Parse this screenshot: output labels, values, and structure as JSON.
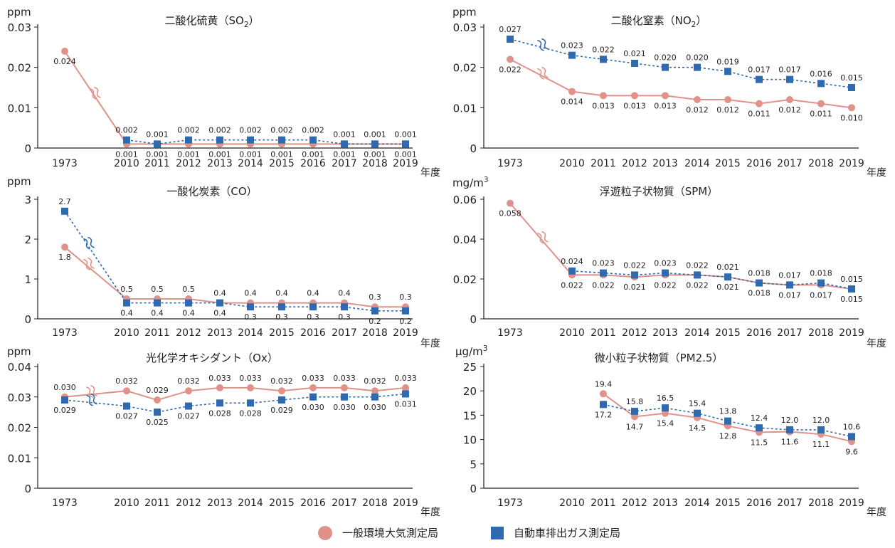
{
  "colors": {
    "general": "#e0928a",
    "roadside": "#2f6ab0",
    "axis": "#231f20"
  },
  "legend": {
    "general_label": "一般環境大気測定局",
    "roadside_label": "自動車排出ガス測定局",
    "general_icon": "circle-marker-icon",
    "roadside_icon": "square-marker-icon"
  },
  "chart_data": [
    {
      "type": "line",
      "title": "二酸化硫黄（SO2）",
      "ylabel": "ppm",
      "xlabel": "年度",
      "ylim": [
        0,
        0.03
      ],
      "yticks": [
        "0",
        "0.01",
        "0.02",
        "0.03"
      ],
      "categories": [
        "1973",
        "2010",
        "2011",
        "2012",
        "2013",
        "2014",
        "2015",
        "2016",
        "2017",
        "2018",
        "2019"
      ],
      "axis_break": true,
      "series": [
        {
          "name": "一般環境大気測定局",
          "values": [
            0.024,
            0.001,
            0.001,
            0.001,
            0.001,
            0.001,
            0.001,
            0.001,
            0.001,
            0.001,
            0.001
          ],
          "labels": [
            "0.024",
            "0.001",
            "0.001",
            "0.001",
            "0.001",
            "0.001",
            "0.001",
            "0.001",
            "0.001",
            "0.001",
            "0.001"
          ]
        },
        {
          "name": "自動車排出ガス測定局",
          "values": [
            null,
            0.002,
            0.001,
            0.002,
            0.002,
            0.002,
            0.002,
            0.002,
            0.001,
            0.001,
            0.001
          ],
          "labels": [
            null,
            "0.002",
            "0.001",
            "0.002",
            "0.002",
            "0.002",
            "0.002",
            "0.002",
            "0.001",
            "0.001",
            "0.001"
          ]
        }
      ]
    },
    {
      "type": "line",
      "title": "二酸化窒素（NO2）",
      "ylabel": "ppm",
      "xlabel": "年度",
      "ylim": [
        0,
        0.03
      ],
      "yticks": [
        "0",
        "0.01",
        "0.02",
        "0.03"
      ],
      "categories": [
        "1973",
        "2010",
        "2011",
        "2012",
        "2013",
        "2014",
        "2015",
        "2016",
        "2017",
        "2018",
        "2019"
      ],
      "axis_break": true,
      "series": [
        {
          "name": "一般環境大気測定局",
          "values": [
            0.022,
            0.014,
            0.013,
            0.013,
            0.013,
            0.012,
            0.012,
            0.011,
            0.012,
            0.011,
            0.01
          ],
          "labels": [
            "0.022",
            "0.014",
            "0.013",
            "0.013",
            "0.013",
            "0.012",
            "0.012",
            "0.011",
            "0.012",
            "0.011",
            "0.010"
          ]
        },
        {
          "name": "自動車排出ガス測定局",
          "values": [
            0.027,
            0.023,
            0.022,
            0.021,
            0.02,
            0.02,
            0.019,
            0.017,
            0.017,
            0.016,
            0.015
          ],
          "labels": [
            "0.027",
            "0.023",
            "0.022",
            "0.021",
            "0.020",
            "0.020",
            "0.019",
            "0.017",
            "0.017",
            "0.016",
            "0.015"
          ]
        }
      ]
    },
    {
      "type": "line",
      "title": "一酸化炭素（CO）",
      "ylabel": "ppm",
      "xlabel": "年度",
      "ylim": [
        0,
        3
      ],
      "yticks": [
        "0",
        "1",
        "2",
        "3"
      ],
      "categories": [
        "1973",
        "2010",
        "2011",
        "2012",
        "2013",
        "2014",
        "2015",
        "2016",
        "2017",
        "2018",
        "2019"
      ],
      "axis_break": true,
      "series": [
        {
          "name": "一般環境大気測定局",
          "values": [
            1.8,
            0.5,
            0.5,
            0.5,
            0.4,
            0.4,
            0.4,
            0.4,
            0.4,
            0.3,
            0.3
          ],
          "labels": [
            "1.8",
            "0.5",
            "0.5",
            "0.5",
            "0.4",
            "0.4",
            "0.4",
            "0.4",
            "0.4",
            "0.3",
            "0.3"
          ]
        },
        {
          "name": "自動車排出ガス測定局",
          "values": [
            2.7,
            0.4,
            0.4,
            0.4,
            0.4,
            0.3,
            0.3,
            0.3,
            0.3,
            0.2,
            0.2
          ],
          "labels": [
            "2.7",
            "0.4",
            "0.4",
            "0.4",
            "0.4",
            "0.3",
            "0.3",
            "0.3",
            "0.3",
            "0.2",
            "0.2"
          ]
        }
      ]
    },
    {
      "type": "line",
      "title": "浮遊粒子状物質（SPM）",
      "ylabel": "mg/m3",
      "xlabel": "年度",
      "ylim": [
        0,
        0.06
      ],
      "yticks": [
        "0",
        "0.02",
        "0.04",
        "0.06"
      ],
      "categories": [
        "1973",
        "2010",
        "2011",
        "2012",
        "2013",
        "2014",
        "2015",
        "2016",
        "2017",
        "2018",
        "2019"
      ],
      "axis_break": true,
      "series": [
        {
          "name": "一般環境大気測定局",
          "values": [
            0.058,
            0.022,
            0.022,
            0.021,
            0.022,
            0.022,
            0.021,
            0.018,
            0.017,
            0.017,
            0.015
          ],
          "labels": [
            "0.058",
            "0.022",
            "0.022",
            "0.021",
            "0.022",
            "0.022",
            "0.021",
            "0.018",
            "0.017",
            "0.017",
            "0.015"
          ]
        },
        {
          "name": "自動車排出ガス測定局",
          "values": [
            null,
            0.024,
            0.023,
            0.022,
            0.023,
            0.022,
            0.021,
            0.018,
            0.017,
            0.018,
            0.015
          ],
          "labels": [
            null,
            "0.024",
            "0.023",
            "0.022",
            "0.023",
            "0.022",
            "0.021",
            "0.018",
            "0.017",
            "0.018",
            "0.015"
          ]
        }
      ]
    },
    {
      "type": "line",
      "title": "光化学オキシダント（Ox）",
      "ylabel": "ppm",
      "xlabel": "年度",
      "ylim": [
        0,
        0.04
      ],
      "yticks": [
        "0",
        "0.01",
        "0.02",
        "0.03",
        "0.04"
      ],
      "categories": [
        "1973",
        "2010",
        "2011",
        "2012",
        "2013",
        "2014",
        "2015",
        "2016",
        "2017",
        "2018",
        "2019"
      ],
      "axis_break": true,
      "series": [
        {
          "name": "一般環境大気測定局",
          "values": [
            0.03,
            0.032,
            0.029,
            0.032,
            0.033,
            0.033,
            0.032,
            0.033,
            0.033,
            0.032,
            0.033
          ],
          "labels": [
            "0.030",
            "0.032",
            "0.029",
            "0.032",
            "0.033",
            "0.033",
            "0.032",
            "0.033",
            "0.033",
            "0.032",
            "0.033"
          ]
        },
        {
          "name": "自動車排出ガス測定局",
          "values": [
            0.029,
            0.027,
            0.025,
            0.027,
            0.028,
            0.028,
            0.029,
            0.03,
            0.03,
            0.03,
            0.031
          ],
          "labels": [
            "0.029",
            "0.027",
            "0.025",
            "0.027",
            "0.028",
            "0.028",
            "0.029",
            "0.030",
            "0.030",
            "0.030",
            "0.031"
          ]
        }
      ]
    },
    {
      "type": "line",
      "title": "微小粒子状物質（PM2.5）",
      "ylabel": "μg/m3",
      "xlabel": "年度",
      "ylim": [
        0,
        25
      ],
      "yticks": [
        "0",
        "5",
        "10",
        "15",
        "20",
        "25"
      ],
      "categories": [
        "1973",
        "2010",
        "2011",
        "2012",
        "2013",
        "2014",
        "2015",
        "2016",
        "2017",
        "2018",
        "2019"
      ],
      "axis_break": false,
      "series": [
        {
          "name": "一般環境大気測定局",
          "values": [
            null,
            null,
            19.4,
            14.7,
            15.4,
            14.5,
            12.8,
            11.5,
            11.6,
            11.1,
            9.6
          ],
          "labels": [
            null,
            null,
            "19.4",
            "14.7",
            "15.4",
            "14.5",
            "12.8",
            "11.5",
            "11.6",
            "11.1",
            "9.6"
          ]
        },
        {
          "name": "自動車排出ガス測定局",
          "values": [
            null,
            null,
            17.2,
            15.8,
            16.5,
            15.4,
            13.8,
            12.4,
            12.0,
            12.0,
            10.6
          ],
          "labels": [
            null,
            null,
            "17.2",
            "15.8",
            "16.5",
            "15.4",
            "13.8",
            "12.4",
            "12.0",
            "12.0",
            "10.6"
          ]
        }
      ]
    }
  ]
}
